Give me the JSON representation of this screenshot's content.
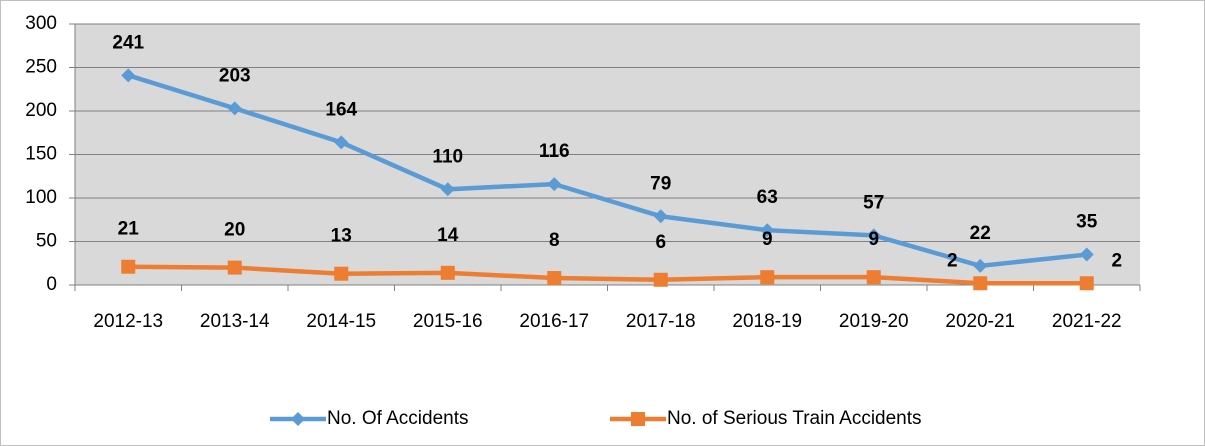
{
  "chart_data": {
    "type": "line",
    "categories": [
      "2012-13",
      "2013-14",
      "2014-15",
      "2015-16",
      "2016-17",
      "2017-18",
      "2018-19",
      "2019-20",
      "2020-21",
      "2021-22"
    ],
    "series": [
      {
        "name": "No. Of Accidents",
        "color": "#5b9bd5",
        "marker": "diamond",
        "values": [
          241,
          203,
          164,
          110,
          116,
          79,
          63,
          57,
          22,
          35
        ]
      },
      {
        "name": "No. of Serious Train Accidents",
        "color": "#ed7d31",
        "marker": "square",
        "values": [
          21,
          20,
          13,
          14,
          8,
          6,
          9,
          9,
          2,
          2
        ]
      }
    ],
    "ylim": [
      0,
      300
    ],
    "yticks": [
      0,
      50,
      100,
      150,
      200,
      250,
      300
    ],
    "grid": true,
    "legend": "bottom"
  }
}
